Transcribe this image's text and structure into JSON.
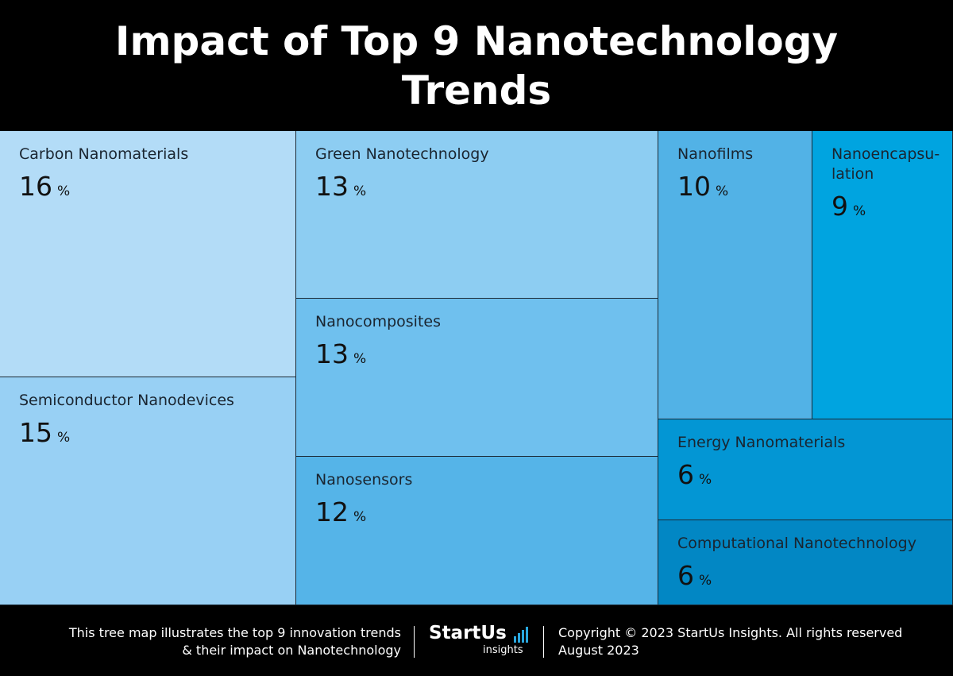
{
  "header": {
    "title": "Impact of Top 9 Nanotechnology Trends"
  },
  "chart_data": {
    "type": "treemap",
    "title": "Impact of Top 9 Nanotechnology Trends",
    "unit": "%",
    "items": [
      {
        "label": "Carbon Nanomaterials",
        "value": 16,
        "color": "#b3dcf7"
      },
      {
        "label": "Semiconductor Nanodevices",
        "value": 15,
        "color": "#98d0f4"
      },
      {
        "label": "Green Nanotechnology",
        "value": 13,
        "color": "#8dcdf2"
      },
      {
        "label": "Nanocomposites",
        "value": 13,
        "color": "#6fc0ee"
      },
      {
        "label": "Nanosensors",
        "value": 12,
        "color": "#55b4e8"
      },
      {
        "label": "Nanofilms",
        "value": 10,
        "color": "#52b2e6"
      },
      {
        "label": "Nanoencapsu-\nlation",
        "value": 9,
        "color": "#00a4e0"
      },
      {
        "label": "Energy Nanomaterials",
        "value": 6,
        "color": "#0396d4"
      },
      {
        "label": "Computational Nanotechnology",
        "value": 6,
        "color": "#0287c4"
      }
    ]
  },
  "footer": {
    "description_line1": "This tree map illustrates the top 9 innovation trends",
    "description_line2": "& their impact on Nanotechnology",
    "logo_word": "StartUs",
    "logo_sub": "insights",
    "copyright": "Copyright © 2023 StartUs Insights. All rights reserved",
    "date": "August 2023"
  }
}
